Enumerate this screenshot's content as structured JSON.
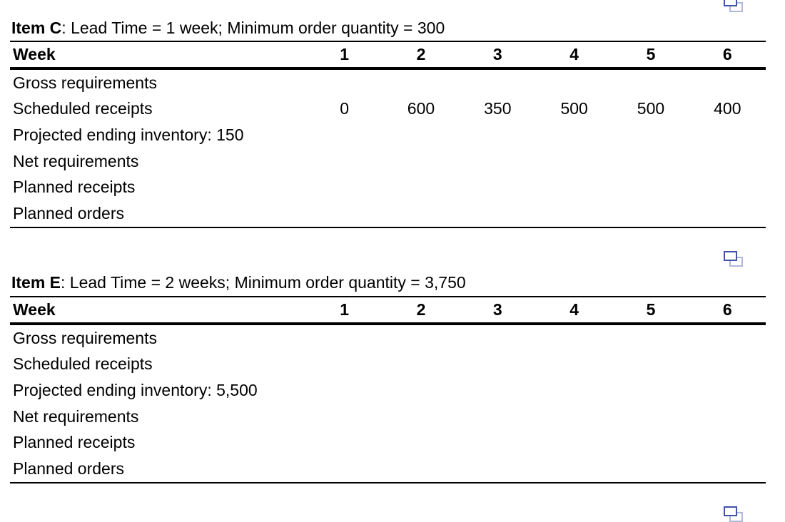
{
  "page": {
    "background": "#ffffff"
  },
  "icons": {
    "copy_icon_front_color": "#4053a4",
    "copy_icon_back_color": "#b0b7da"
  },
  "tables": [
    {
      "title_bold": "Item C",
      "title_rest": ": Lead Time = 1 week; Minimum order quantity = 300",
      "week_label": "Week",
      "weeks": [
        "1",
        "2",
        "3",
        "4",
        "5",
        "6"
      ],
      "rows": [
        {
          "label": "Gross requirements",
          "values": [
            "",
            "",
            "",
            "",
            "",
            ""
          ]
        },
        {
          "label": "Scheduled receipts",
          "values": [
            "0",
            "600",
            "350",
            "500",
            "500",
            "400"
          ]
        },
        {
          "label": "Projected ending inventory: 150",
          "values": [
            "",
            "",
            "",
            "",
            "",
            ""
          ]
        },
        {
          "label": "Net requirements",
          "values": [
            "",
            "",
            "",
            "",
            "",
            ""
          ]
        },
        {
          "label": "Planned receipts",
          "values": [
            "",
            "",
            "",
            "",
            "",
            ""
          ]
        },
        {
          "label": "Planned orders",
          "values": [
            "",
            "",
            "",
            "",
            "",
            ""
          ]
        }
      ]
    },
    {
      "title_bold": "Item E",
      "title_rest": ": Lead Time = 2 weeks; Minimum order quantity = 3,750",
      "week_label": "Week",
      "weeks": [
        "1",
        "2",
        "3",
        "4",
        "5",
        "6"
      ],
      "rows": [
        {
          "label": "Gross requirements",
          "values": [
            "",
            "",
            "",
            "",
            "",
            ""
          ]
        },
        {
          "label": "Scheduled receipts",
          "values": [
            "",
            "",
            "",
            "",
            "",
            ""
          ]
        },
        {
          "label": "Projected ending inventory: 5,500",
          "values": [
            "",
            "",
            "",
            "",
            "",
            ""
          ]
        },
        {
          "label": "Net requirements",
          "values": [
            "",
            "",
            "",
            "",
            "",
            ""
          ]
        },
        {
          "label": "Planned receipts",
          "values": [
            "",
            "",
            "",
            "",
            "",
            ""
          ]
        },
        {
          "label": "Planned orders",
          "values": [
            "",
            "",
            "",
            "",
            "",
            ""
          ]
        }
      ]
    }
  ]
}
